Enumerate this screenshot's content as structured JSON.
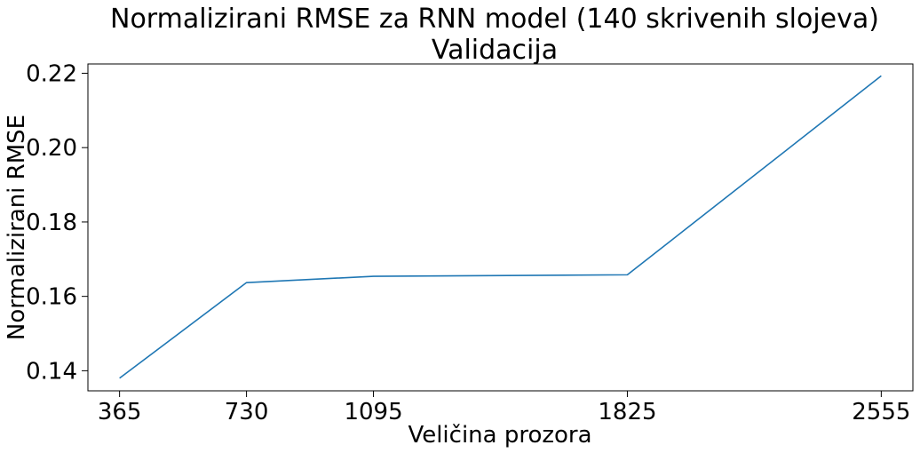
{
  "chart_data": {
    "type": "line",
    "title": "Normalizirani RMSE za RNN model (140 skrivenih slojeva)",
    "subtitle": "Validacija",
    "xlabel": "Veličina prozora",
    "ylabel": "Normalizirani RMSE",
    "x": [
      365,
      730,
      1095,
      1825,
      2555
    ],
    "x_tick_labels": [
      "365",
      "730",
      "1095",
      "1825",
      "2555"
    ],
    "y_ticks": [
      0.14,
      0.16,
      0.18,
      0.2,
      0.22
    ],
    "y_tick_labels": [
      "0.14",
      "0.16",
      "0.18",
      "0.20",
      "0.22"
    ],
    "series": [
      {
        "values": [
          0.138,
          0.1637,
          0.1654,
          0.1658,
          0.2193
        ],
        "color": "#1f77b4"
      }
    ],
    "xlim": [
      274,
      2646
    ],
    "ylim": [
      0.1346,
      0.2225
    ],
    "grid": false,
    "legend": "none"
  }
}
